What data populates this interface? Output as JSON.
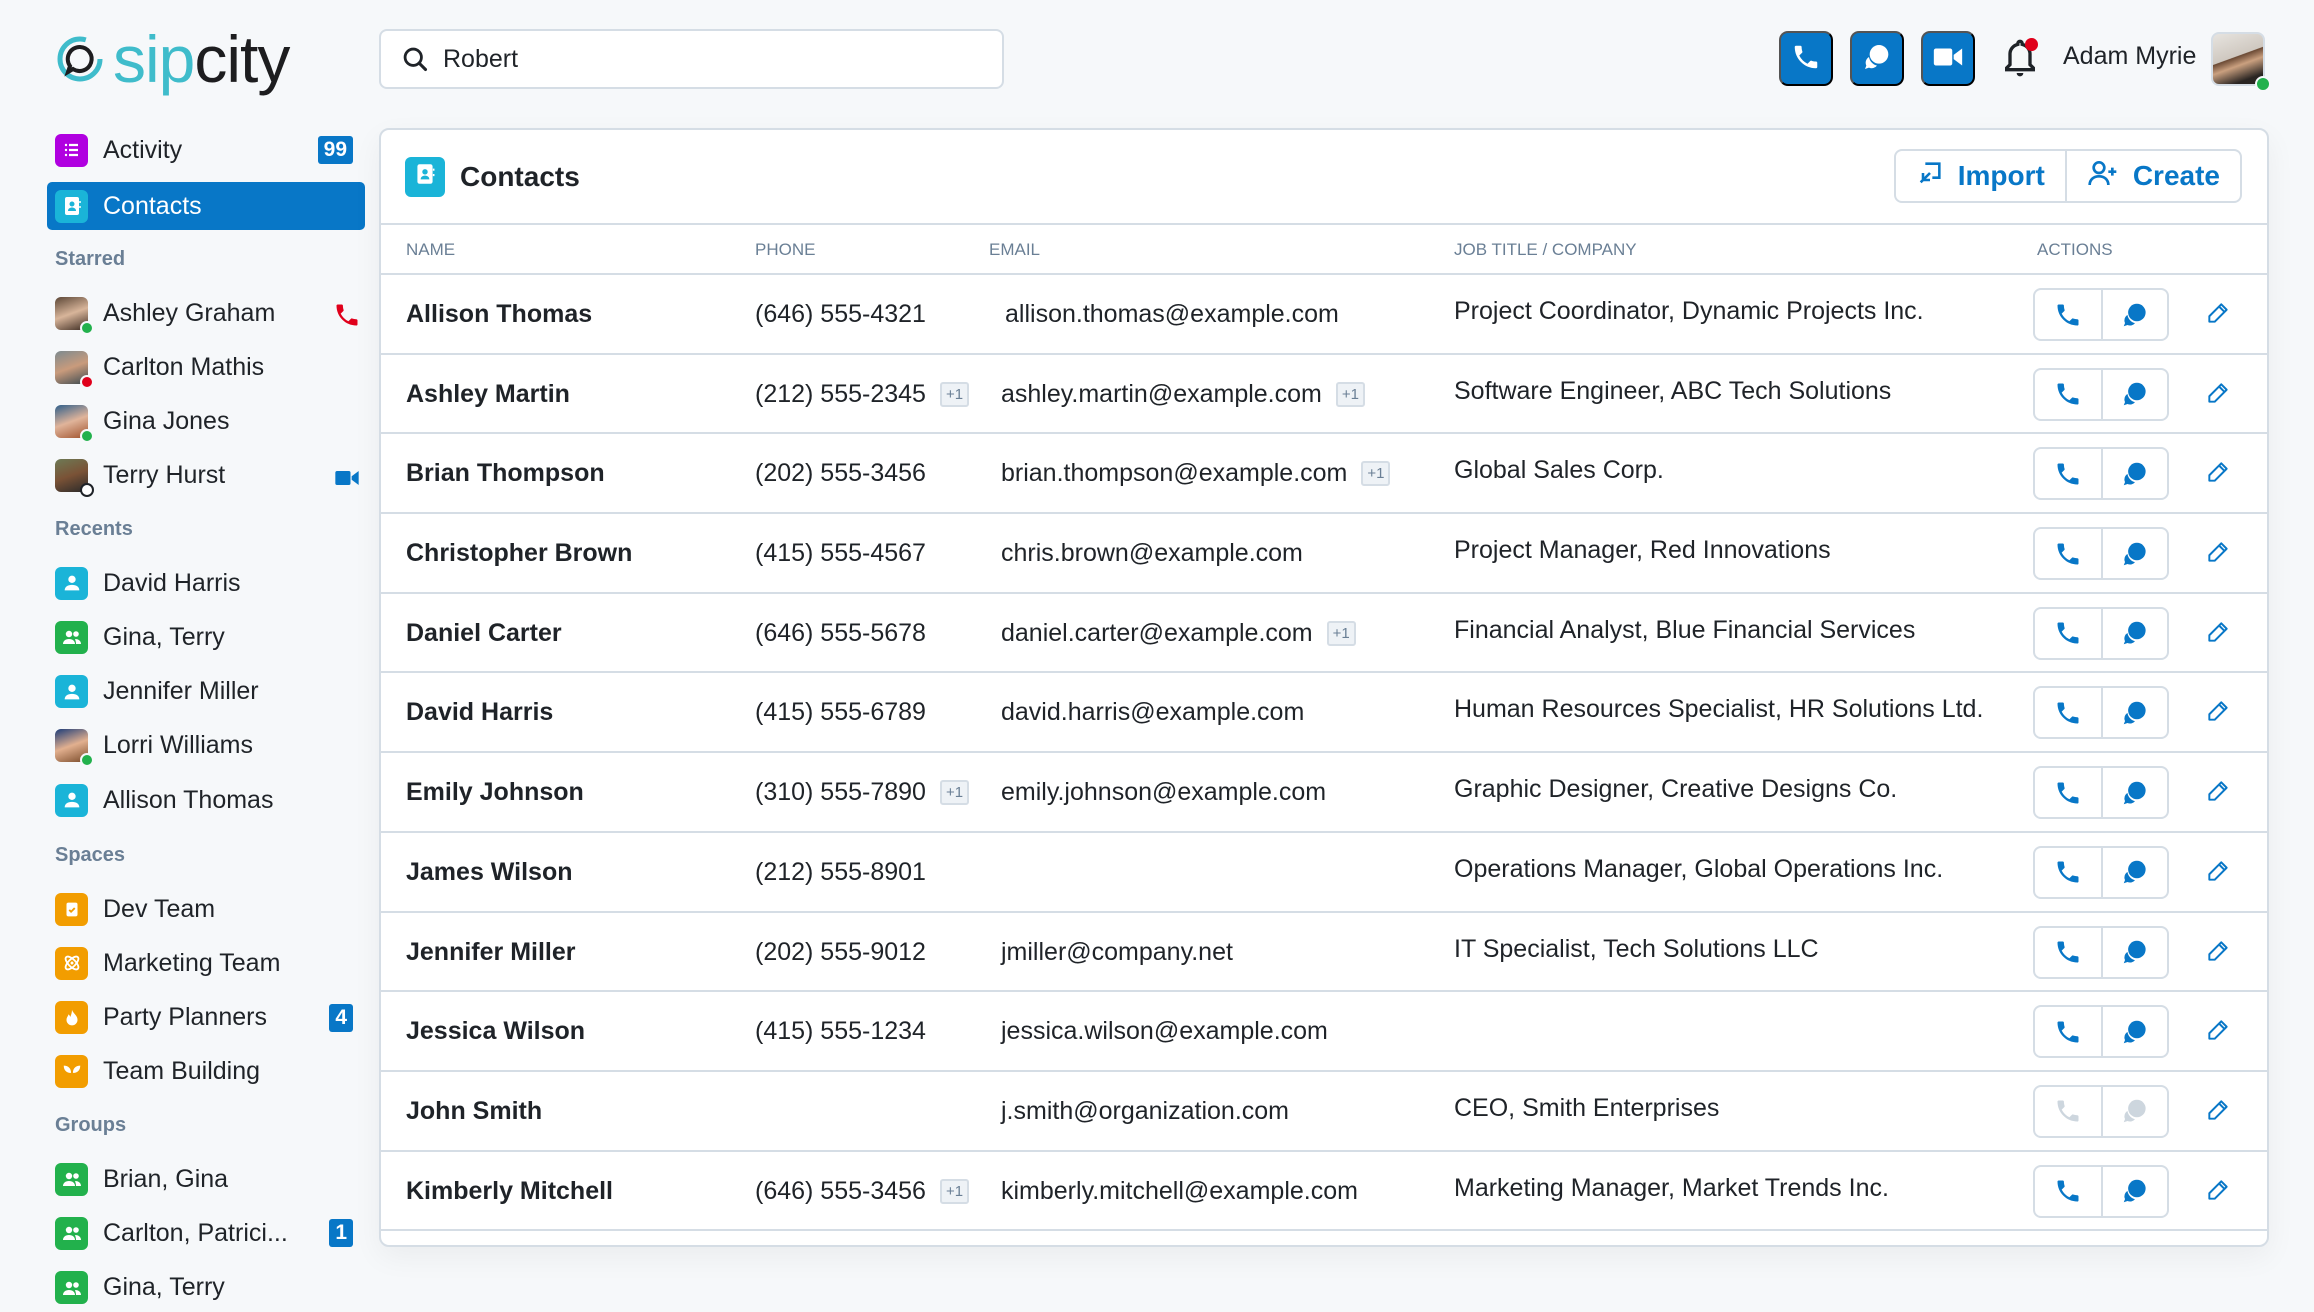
{
  "app": {
    "logo_part1": "sip",
    "logo_part2": "city"
  },
  "search": {
    "value": "Robert",
    "placeholder": "Search"
  },
  "topbar": {
    "user_name": "Adam Myrie",
    "user_status": "online",
    "notification_dot": true,
    "actions": [
      "phone-icon",
      "chat-icon",
      "video-icon"
    ]
  },
  "colors": {
    "accent": "#0877c7",
    "logo_teal": "#3fbccb",
    "activity": "#b000e0",
    "contact": "#1ab4d8",
    "group": "#22b14c",
    "space": "#f29d00",
    "online": "#22b14c",
    "busy": "#e0001b"
  },
  "sidebar": {
    "nav": [
      {
        "label": "Activity",
        "badge": "99",
        "icon": "list-icon"
      },
      {
        "label": "Contacts",
        "active": true,
        "icon": "contacts-icon"
      }
    ],
    "sections": [
      {
        "title": "Starred",
        "items": [
          {
            "label": "Ashley Graham",
            "type": "avatar",
            "status": "online",
            "trailing": "phone-icon",
            "trailing_color": "#e0001b"
          },
          {
            "label": "Carlton Mathis",
            "type": "avatar",
            "status": "busy"
          },
          {
            "label": "Gina Jones",
            "type": "avatar",
            "status": "online"
          },
          {
            "label": "Terry Hurst",
            "type": "avatar",
            "status": "offline",
            "trailing": "video-icon",
            "trailing_color": "#0877c7"
          }
        ]
      },
      {
        "title": "Recents",
        "items": [
          {
            "label": "David Harris",
            "type": "person"
          },
          {
            "label": "Gina, Terry",
            "type": "group"
          },
          {
            "label": "Jennifer Miller",
            "type": "person"
          },
          {
            "label": "Lorri Williams",
            "type": "avatar",
            "status": "online"
          },
          {
            "label": "Allison Thomas",
            "type": "person"
          }
        ]
      },
      {
        "title": "Spaces",
        "items": [
          {
            "label": "Dev Team",
            "type": "space",
            "glyph": "clipboard-check-icon"
          },
          {
            "label": "Marketing Team",
            "type": "space",
            "glyph": "atom-icon"
          },
          {
            "label": "Party Planners",
            "type": "space",
            "glyph": "flame-icon",
            "badge": "4"
          },
          {
            "label": "Team Building",
            "type": "space",
            "glyph": "sprout-icon"
          }
        ]
      },
      {
        "title": "Groups",
        "items": [
          {
            "label": "Brian, Gina",
            "type": "group"
          },
          {
            "label": "Carlton, Patrici...",
            "type": "group",
            "badge": "1"
          },
          {
            "label": "Gina, Terry",
            "type": "group"
          }
        ]
      }
    ]
  },
  "contacts": {
    "title": "Contacts",
    "import_label": "Import",
    "create_label": "Create",
    "columns": {
      "name": "NAME",
      "phone": "PHONE",
      "email": "EMAIL",
      "job": "JOB TITLE / COMPANY",
      "actions": "ACTIONS"
    },
    "rows": [
      {
        "name": "Allison Thomas",
        "phone": "(646) 555-4321",
        "phone_extra": "",
        "email": "allison.thomas@example.com",
        "email_extra": "",
        "job": "Project Coordinator, Dynamic Projects Inc.",
        "call_enabled": true
      },
      {
        "name": "Ashley Martin",
        "phone": "(212) 555-2345",
        "phone_extra": "+1",
        "email": "ashley.martin@example.com",
        "email_extra": "+1",
        "job": "Software Engineer, ABC Tech Solutions",
        "call_enabled": true
      },
      {
        "name": "Brian Thompson",
        "phone": "(202) 555-3456",
        "phone_extra": "",
        "email": "brian.thompson@example.com",
        "email_extra": "+1",
        "job": "Global Sales Corp.",
        "call_enabled": true
      },
      {
        "name": "Christopher Brown",
        "phone": "(415) 555-4567",
        "phone_extra": "",
        "email": "chris.brown@example.com",
        "email_extra": "",
        "job": "Project Manager, Red Innovations",
        "call_enabled": true
      },
      {
        "name": "Daniel Carter",
        "phone": "(646) 555-5678",
        "phone_extra": "",
        "email": "daniel.carter@example.com",
        "email_extra": "+1",
        "job": "Financial Analyst, Blue Financial Services",
        "call_enabled": true
      },
      {
        "name": "David Harris",
        "phone": "(415) 555-6789",
        "phone_extra": "",
        "email": "david.harris@example.com",
        "email_extra": "",
        "job": "Human Resources Specialist, HR Solutions Ltd.",
        "call_enabled": true
      },
      {
        "name": "Emily Johnson",
        "phone": "(310) 555-7890",
        "phone_extra": "+1",
        "email": "emily.johnson@example.com",
        "email_extra": "",
        "job": "Graphic Designer, Creative Designs Co.",
        "call_enabled": true
      },
      {
        "name": "James Wilson",
        "phone": "(212) 555-8901",
        "phone_extra": "",
        "email": "",
        "email_extra": "",
        "job": "Operations Manager, Global Operations Inc.",
        "call_enabled": true
      },
      {
        "name": "Jennifer Miller",
        "phone": "(202) 555-9012",
        "phone_extra": "",
        "email": "jmiller@company.net",
        "email_extra": "",
        "job": "IT Specialist, Tech Solutions LLC",
        "call_enabled": true
      },
      {
        "name": "Jessica Wilson",
        "phone": "(415) 555-1234",
        "phone_extra": "",
        "email": "jessica.wilson@example.com",
        "email_extra": "",
        "job": "",
        "call_enabled": true
      },
      {
        "name": "John Smith",
        "phone": "",
        "phone_extra": "",
        "email": "j.smith@organization.com",
        "email_extra": "",
        "job": "CEO, Smith Enterprises",
        "call_enabled": false
      },
      {
        "name": "Kimberly Mitchell",
        "phone": "(646) 555-3456",
        "phone_extra": "+1",
        "email": "kimberly.mitchell@example.com",
        "email_extra": "",
        "job": "Marketing Manager, Market Trends Inc.",
        "call_enabled": true
      }
    ]
  }
}
